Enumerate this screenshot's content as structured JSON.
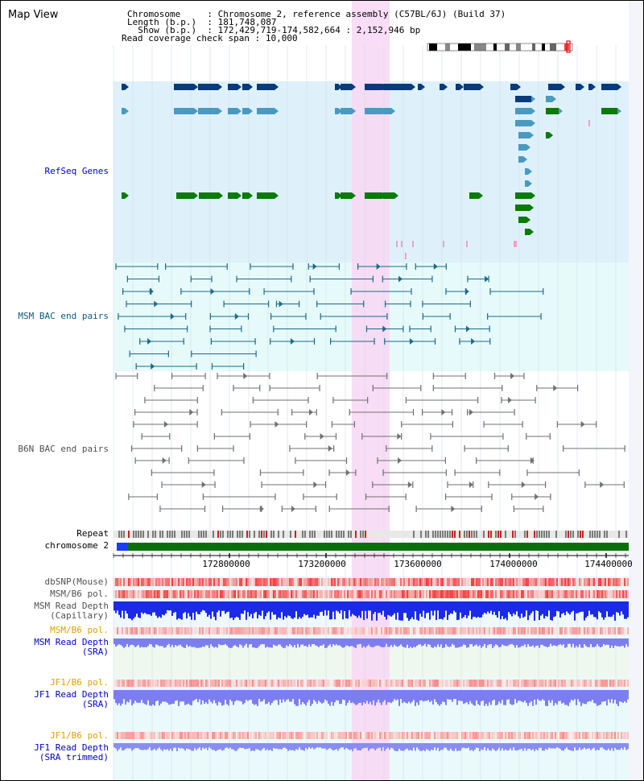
{
  "header": {
    "title": "Map View",
    "info_lines": [
      {
        "key": "Chromosome     ",
        "value": "Chromosome 2, reference assembly (C57BL/6J) (Build 37)"
      },
      {
        "key": "Length (b.p.)  ",
        "value": "181,748,087"
      },
      {
        "key": "  Show (b.p.)  ",
        "value": "172,429,719-174,582,664 : 2,152,946 bp"
      },
      {
        "key": "Read coverage check span",
        "value": "10,000"
      }
    ]
  },
  "tracks": {
    "refseq": "RefSeq Genes",
    "msm_bac": "MSM BAC end pairs",
    "b6n_bac": "B6N BAC end pairs",
    "repeat": "Repeat",
    "chromosome": "chromosome 2",
    "dbsnp": "dbSNP(Mouse)",
    "msm_b6_pol_1": "MSM/B6 pol.",
    "msm_read_depth_cap_1": "MSM Read Depth",
    "msm_read_depth_cap_2": "(Capillary)",
    "msm_b6_pol_2": "MSM/B6 pol.",
    "msm_read_depth_sra_1": "MSM Read Depth",
    "msm_read_depth_sra_2": "(SRA)",
    "jf1_b6_pol_1": "JF1/B6 pol.",
    "jf1_read_depth_sra_1": "JF1 Read Depth",
    "jf1_read_depth_sra_2": "(SRA)",
    "jf1_b6_pol_2": "JF1/B6 pol.",
    "jf1_read_depth_trim_1": "JF1 Read Depth",
    "jf1_read_depth_trim_2": "(SRA trimmed)"
  },
  "axis": {
    "ticks": [
      "172800000",
      "173200000",
      "173600000",
      "174000000",
      "174400000"
    ]
  },
  "colors": {
    "refseq_bg": "#def1fa",
    "msm_bg": "#e6fafa",
    "highlight": "#f8d8f4",
    "dark_gene": "#0a3a7a",
    "light_gene": "#4a9ac0",
    "green_gene": "#0a7a0a",
    "msm_line": "#1a6a88",
    "b6n_line": "#707070",
    "label_blue": "#0000c8",
    "label_orange": "#e0a000",
    "chrom_green": "#087008"
  }
}
